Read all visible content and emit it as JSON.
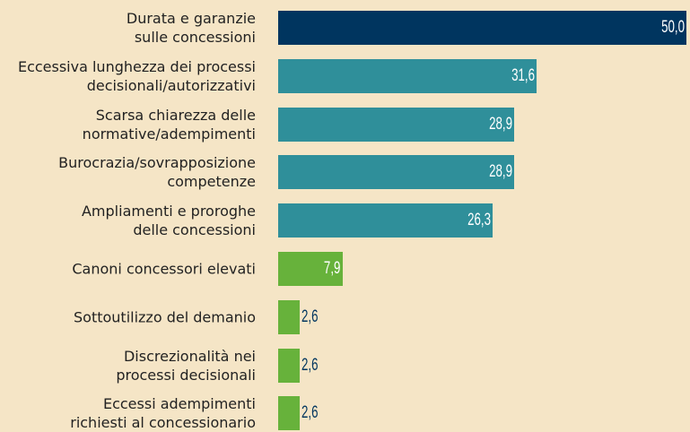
{
  "chart_data": {
    "type": "bar",
    "orientation": "horizontal",
    "categories": [
      "Durata e garanzie\nsulle concessioni",
      "Eccessiva lunghezza dei processi\ndecisionali/autorizzativi",
      "Scarsa chiarezza delle\nnormative/adempimenti",
      "Burocrazia/sovrapposizione\ncompetenze",
      "Ampliamenti e proroghe\ndelle concessioni",
      "Canoni concessori elevati",
      "Sottoutilizzo del demanio",
      "Discrezionalità nei\nprocessi decisionali",
      "Eccessi adempimenti\nrichiesti al concessionario"
    ],
    "values": [
      50.0,
      31.6,
      28.9,
      28.9,
      26.3,
      7.9,
      2.6,
      2.6,
      2.6
    ],
    "value_labels": [
      "50,0",
      "31,6",
      "28,9",
      "28,9",
      "26,3",
      "7,9",
      "2,6",
      "2,6",
      "2,6"
    ],
    "colors": [
      "#00355f",
      "#2f8f9a",
      "#2f8f9a",
      "#2f8f9a",
      "#2f8f9a",
      "#67b23b",
      "#67b23b",
      "#67b23b",
      "#67b23b"
    ]
  }
}
